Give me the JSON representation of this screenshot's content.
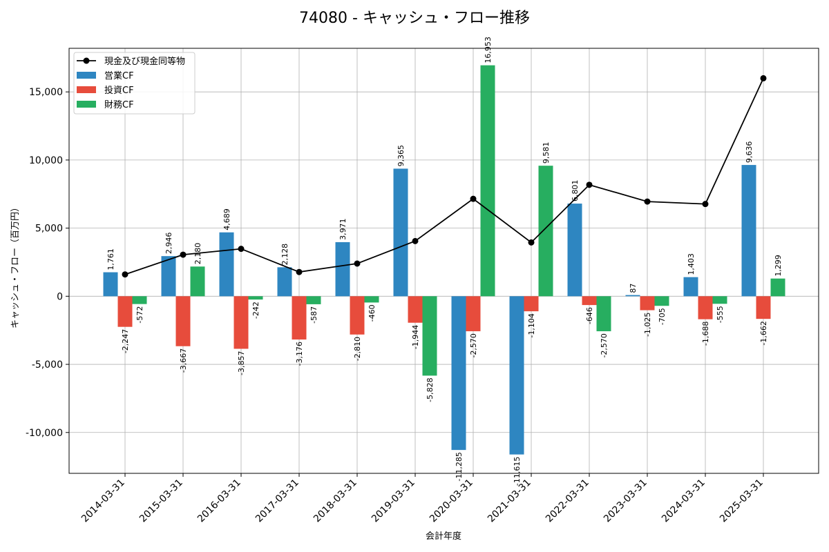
{
  "chart_data": {
    "type": "bar",
    "title": "74080 - キャッシュ・フロー推移",
    "xlabel": "会計年度",
    "ylabel": "キャッシュ・フロー（百万円）",
    "categories": [
      "2014-03-31",
      "2015-03-31",
      "2016-03-31",
      "2017-03-31",
      "2018-03-31",
      "2019-03-31",
      "2020-03-31",
      "2021-03-31",
      "2022-03-31",
      "2023-03-31",
      "2024-03-31",
      "2025-03-31"
    ],
    "ylim": [
      -13000,
      18200
    ],
    "yticks": [
      -10000,
      -5000,
      0,
      5000,
      10000,
      15000
    ],
    "ytick_labels": [
      "-10,000",
      "-5,000",
      "0",
      "5,000",
      "10,000",
      "15,000"
    ],
    "grid": true,
    "legend_position": "upper-left",
    "series": [
      {
        "name": "営業CF",
        "kind": "bar",
        "color": "#2e86c1",
        "values": [
          1761,
          2946,
          4689,
          2128,
          3971,
          9365,
          -11285,
          -11615,
          6801,
          87,
          1403,
          9636
        ],
        "labels": [
          "1,761",
          "2,946",
          "4,689",
          "2,128",
          "3,971",
          "9,365",
          "-11,285",
          "-11,615",
          "6,801",
          "87",
          "1,403",
          "9,636"
        ]
      },
      {
        "name": "投資CF",
        "kind": "bar",
        "color": "#e74c3c",
        "values": [
          -2247,
          -3667,
          -3857,
          -3176,
          -2810,
          -1944,
          -2570,
          -1104,
          -646,
          -1025,
          -1688,
          -1662
        ],
        "labels": [
          "-2,247",
          "-3,667",
          "-3,857",
          "-3,176",
          "-2,810",
          "-1,944",
          "-2,570",
          "-1,104",
          "-646",
          "-1,025",
          "-1,688",
          "-1,662"
        ]
      },
      {
        "name": "財務CF",
        "kind": "bar",
        "color": "#27ae60",
        "values": [
          -572,
          2180,
          -242,
          -587,
          -460,
          -5828,
          16953,
          9581,
          -2570,
          -705,
          -555,
          1299
        ],
        "labels": [
          "-572",
          "2,180",
          "-242",
          "-587",
          "-460",
          "-5,828",
          "16,953",
          "9,581",
          "-2,570",
          "-705",
          "-555",
          "1,299"
        ]
      },
      {
        "name": "現金及び現金同等物",
        "kind": "line",
        "color": "#000000",
        "values": [
          1600,
          3050,
          3480,
          1780,
          2400,
          4050,
          7150,
          3950,
          8180,
          6950,
          6770,
          16000
        ]
      }
    ]
  }
}
